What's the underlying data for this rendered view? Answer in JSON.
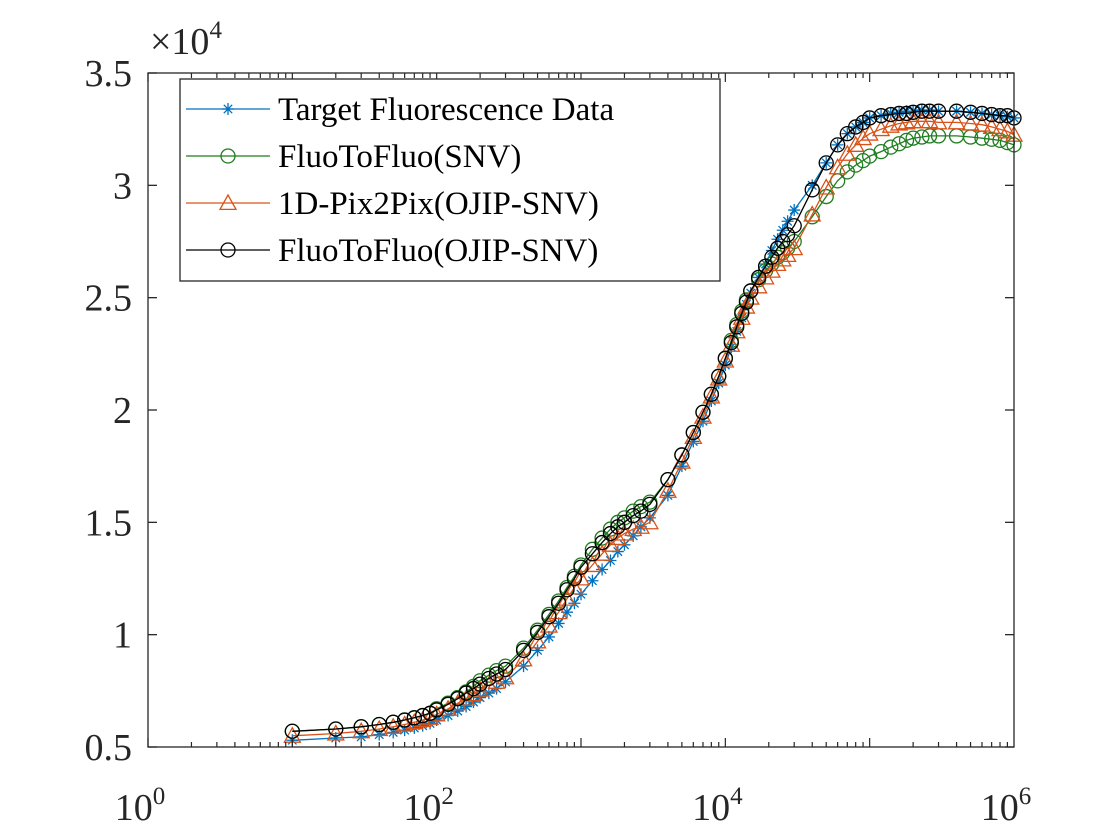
{
  "chart_data": {
    "type": "line",
    "x_scale": "log",
    "xlim": [
      1,
      1000000
    ],
    "ylim": [
      5000,
      35000
    ],
    "y_multiplier": "×10",
    "y_multiplier_exponent": "4",
    "x_ticks": [
      {
        "value": 1,
        "base": "10",
        "exp": "0"
      },
      {
        "value": 100,
        "base": "10",
        "exp": "2"
      },
      {
        "value": 10000,
        "base": "10",
        "exp": "4"
      },
      {
        "value": 1000000,
        "base": "10",
        "exp": "6"
      }
    ],
    "y_ticks": [
      {
        "value": 5000,
        "label": "0.5"
      },
      {
        "value": 10000,
        "label": "1"
      },
      {
        "value": 15000,
        "label": "1.5"
      },
      {
        "value": 20000,
        "label": "2"
      },
      {
        "value": 25000,
        "label": "2.5"
      },
      {
        "value": 30000,
        "label": "3"
      },
      {
        "value": 35000,
        "label": "3.5"
      }
    ],
    "grid": false,
    "legend_position": "top-left",
    "series": [
      {
        "name": "Target Fluorescence Data",
        "color": "#0072BD",
        "marker": "star",
        "x": [
          10,
          20,
          30,
          40,
          50,
          60,
          70,
          80,
          90,
          100,
          120,
          140,
          160,
          180,
          200,
          230,
          260,
          300,
          400,
          500,
          600,
          700,
          800,
          900,
          1000,
          1200,
          1400,
          1600,
          1800,
          2000,
          2300,
          2600,
          3000,
          4000,
          5000,
          6000,
          7000,
          8000,
          9000,
          10000,
          11000,
          12000,
          13000,
          14000,
          15000,
          17000,
          19000,
          21000,
          23000,
          25000,
          27000,
          30000,
          40000,
          50000,
          60000,
          70000,
          80000,
          90000,
          100000,
          120000,
          140000,
          160000,
          180000,
          200000,
          230000,
          260000,
          300000,
          400000,
          500000,
          600000,
          700000,
          800000,
          900000,
          1000000
        ],
        "y": [
          5300,
          5400,
          5450,
          5550,
          5650,
          5750,
          5850,
          5950,
          6050,
          6200,
          6400,
          6600,
          6800,
          7000,
          7200,
          7400,
          7600,
          7900,
          8600,
          9300,
          9900,
          10500,
          11000,
          11400,
          11800,
          12400,
          12900,
          13300,
          13700,
          14000,
          14400,
          14800,
          15200,
          16200,
          17500,
          18600,
          19500,
          20400,
          21200,
          22000,
          22800,
          23500,
          24100,
          24700,
          25200,
          25900,
          26500,
          27100,
          27600,
          28000,
          28400,
          28900,
          30000,
          31000,
          31800,
          32300,
          32600,
          32800,
          33000,
          33100,
          33200,
          33250,
          33300,
          33300,
          33350,
          33350,
          33300,
          33300,
          33250,
          33200,
          33150,
          33100,
          33050,
          33000
        ]
      },
      {
        "name": "FluoToFluo(SNV)",
        "color": "#1E7D1E",
        "marker": "circle",
        "x": [
          10,
          20,
          30,
          40,
          50,
          60,
          70,
          80,
          90,
          100,
          120,
          140,
          160,
          180,
          200,
          230,
          260,
          300,
          400,
          500,
          600,
          700,
          800,
          900,
          1000,
          1200,
          1400,
          1600,
          1800,
          2000,
          2300,
          2600,
          3000,
          4000,
          5000,
          6000,
          7000,
          8000,
          9000,
          10000,
          11000,
          12000,
          13000,
          14000,
          15000,
          17000,
          19000,
          21000,
          23000,
          25000,
          27000,
          30000,
          40000,
          50000,
          60000,
          70000,
          80000,
          90000,
          100000,
          120000,
          140000,
          160000,
          180000,
          200000,
          230000,
          260000,
          300000,
          400000,
          500000,
          600000,
          700000,
          800000,
          900000,
          1000000
        ],
        "y": [
          5700,
          5800,
          5900,
          6000,
          6100,
          6200,
          6300,
          6400,
          6500,
          6700,
          6950,
          7200,
          7450,
          7700,
          7950,
          8200,
          8400,
          8600,
          9400,
          10200,
          10900,
          11500,
          12100,
          12600,
          13100,
          13800,
          14300,
          14700,
          15000,
          15200,
          15500,
          15700,
          15900,
          16900,
          18000,
          19000,
          19900,
          20700,
          21500,
          22300,
          23100,
          23800,
          24400,
          24900,
          25300,
          25800,
          26200,
          26500,
          26800,
          27000,
          27200,
          27500,
          28600,
          29500,
          30200,
          30600,
          30900,
          31100,
          31300,
          31500,
          31700,
          31850,
          32000,
          32100,
          32150,
          32200,
          32200,
          32200,
          32150,
          32100,
          32050,
          32000,
          31900,
          31800
        ]
      },
      {
        "name": "1D-Pix2Pix(OJIP-SNV)",
        "color": "#D95319",
        "marker": "triangle",
        "x": [
          10,
          20,
          30,
          40,
          50,
          60,
          70,
          80,
          90,
          100,
          120,
          140,
          160,
          180,
          200,
          230,
          260,
          300,
          400,
          500,
          600,
          700,
          800,
          900,
          1000,
          1200,
          1400,
          1600,
          1800,
          2000,
          2300,
          2600,
          3000,
          4000,
          5000,
          6000,
          7000,
          8000,
          9000,
          10000,
          11000,
          12000,
          13000,
          14000,
          15000,
          17000,
          19000,
          21000,
          23000,
          25000,
          27000,
          30000,
          40000,
          50000,
          60000,
          70000,
          80000,
          90000,
          100000,
          120000,
          140000,
          160000,
          180000,
          200000,
          230000,
          260000,
          300000,
          400000,
          500000,
          600000,
          700000,
          800000,
          900000,
          1000000
        ],
        "y": [
          5500,
          5600,
          5700,
          5800,
          5900,
          6000,
          6100,
          6200,
          6300,
          6450,
          6700,
          6950,
          7150,
          7350,
          7550,
          7750,
          7900,
          8100,
          8900,
          9700,
          10400,
          11000,
          11600,
          12100,
          12500,
          13100,
          13600,
          14000,
          14300,
          14500,
          14700,
          14800,
          15000,
          16400,
          17700,
          18800,
          19700,
          20600,
          21400,
          22200,
          22900,
          23500,
          24100,
          24600,
          25000,
          25500,
          25900,
          26200,
          26500,
          26700,
          26900,
          27200,
          28700,
          29900,
          30800,
          31400,
          31800,
          32100,
          32300,
          32500,
          32650,
          32750,
          32800,
          32850,
          32850,
          32850,
          32800,
          32800,
          32750,
          32700,
          32600,
          32500,
          32400,
          32250
        ]
      },
      {
        "name": "FluoToFluo(OJIP-SNV)",
        "color": "#000000",
        "marker": "circle",
        "x": [
          10,
          20,
          30,
          40,
          50,
          60,
          70,
          80,
          90,
          100,
          120,
          140,
          160,
          180,
          200,
          230,
          260,
          300,
          400,
          500,
          600,
          700,
          800,
          900,
          1000,
          1200,
          1400,
          1600,
          1800,
          2000,
          2300,
          2600,
          3000,
          4000,
          5000,
          6000,
          7000,
          8000,
          9000,
          10000,
          11000,
          12000,
          13000,
          14000,
          15000,
          17000,
          19000,
          21000,
          23000,
          25000,
          27000,
          30000,
          40000,
          50000,
          60000,
          70000,
          80000,
          90000,
          100000,
          120000,
          140000,
          160000,
          180000,
          200000,
          230000,
          260000,
          300000,
          400000,
          500000,
          600000,
          700000,
          800000,
          900000,
          1000000
        ],
        "y": [
          5700,
          5800,
          5900,
          6000,
          6100,
          6200,
          6300,
          6400,
          6500,
          6650,
          6900,
          7150,
          7400,
          7600,
          7800,
          8050,
          8250,
          8450,
          9300,
          10100,
          10800,
          11400,
          12000,
          12500,
          13000,
          13600,
          14100,
          14500,
          14800,
          15000,
          15300,
          15500,
          15800,
          16900,
          18000,
          19000,
          19900,
          20700,
          21500,
          22300,
          23000,
          23700,
          24300,
          24800,
          25300,
          25900,
          26400,
          26800,
          27200,
          27500,
          27800,
          28200,
          29800,
          31000,
          31800,
          32300,
          32600,
          32800,
          33000,
          33100,
          33150,
          33200,
          33200,
          33250,
          33300,
          33300,
          33300,
          33300,
          33250,
          33200,
          33150,
          33100,
          33100,
          33000
        ]
      }
    ]
  }
}
